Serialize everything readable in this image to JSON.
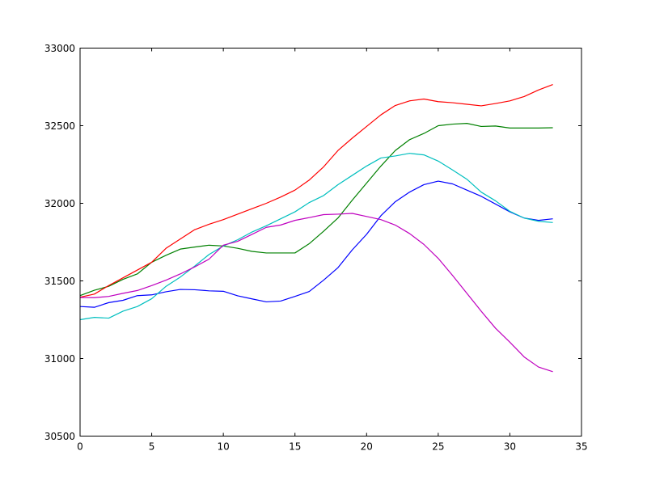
{
  "chart_data": {
    "type": "line",
    "title": "",
    "xlabel": "",
    "ylabel": "",
    "xlim": [
      0,
      35
    ],
    "ylim": [
      30500,
      33000
    ],
    "xticks": [
      0,
      5,
      10,
      15,
      20,
      25,
      30,
      35
    ],
    "yticks": [
      30500,
      31000,
      31500,
      32000,
      32500,
      33000
    ],
    "xtick_labels": [
      "0",
      "5",
      "10",
      "15",
      "20",
      "25",
      "30",
      "35"
    ],
    "ytick_labels": [
      "30500",
      "31000",
      "31500",
      "32000",
      "32500",
      "33000"
    ],
    "grid": false,
    "x": [
      0,
      1,
      2,
      3,
      4,
      5,
      6,
      7,
      8,
      9,
      10,
      11,
      12,
      13,
      14,
      15,
      16,
      17,
      18,
      19,
      20,
      21,
      22,
      23,
      24,
      25,
      26,
      27,
      28,
      29,
      30,
      31,
      32,
      33
    ],
    "series": [
      {
        "color": "#0000ff",
        "values": [
          31335,
          31330,
          31360,
          31375,
          31405,
          31410,
          31430,
          31445,
          31443,
          31436,
          31433,
          31404,
          31384,
          31365,
          31370,
          31400,
          31432,
          31505,
          31585,
          31700,
          31800,
          31920,
          32010,
          32072,
          32120,
          32143,
          32125,
          32085,
          32045,
          31995,
          31945,
          31905,
          31890,
          31900
        ]
      },
      {
        "color": "#008000",
        "values": [
          31405,
          31440,
          31465,
          31510,
          31545,
          31620,
          31665,
          31705,
          31718,
          31730,
          31725,
          31710,
          31690,
          31680,
          31680,
          31680,
          31740,
          31820,
          31905,
          32020,
          32130,
          32240,
          32340,
          32410,
          32450,
          32500,
          32510,
          32515,
          32495,
          32498,
          32485,
          32485,
          32485,
          32487
        ]
      },
      {
        "color": "#ff0000",
        "values": [
          31395,
          31415,
          31470,
          31520,
          31570,
          31620,
          31710,
          31770,
          31830,
          31865,
          31895,
          31930,
          31965,
          32000,
          32040,
          32085,
          32150,
          32235,
          32340,
          32420,
          32495,
          32570,
          32630,
          32660,
          32672,
          32655,
          32648,
          32638,
          32628,
          32643,
          32660,
          32688,
          32730,
          32765
        ]
      },
      {
        "color": "#00bfbf",
        "values": [
          31250,
          31265,
          31260,
          31305,
          31335,
          31385,
          31465,
          31525,
          31595,
          31670,
          31725,
          31765,
          31815,
          31855,
          31900,
          31945,
          32005,
          32050,
          32120,
          32180,
          32240,
          32292,
          32305,
          32322,
          32312,
          32272,
          32215,
          32155,
          32072,
          32016,
          31948,
          31905,
          31884,
          31876
        ]
      },
      {
        "color": "#bf00bf",
        "values": [
          31393,
          31392,
          31400,
          31420,
          31438,
          31470,
          31505,
          31545,
          31590,
          31640,
          31730,
          31755,
          31800,
          31845,
          31860,
          31890,
          31908,
          31927,
          31930,
          31935,
          31915,
          31895,
          31860,
          31805,
          31735,
          31645,
          31535,
          31420,
          31305,
          31195,
          31105,
          31010,
          30945,
          30915
        ]
      }
    ]
  }
}
